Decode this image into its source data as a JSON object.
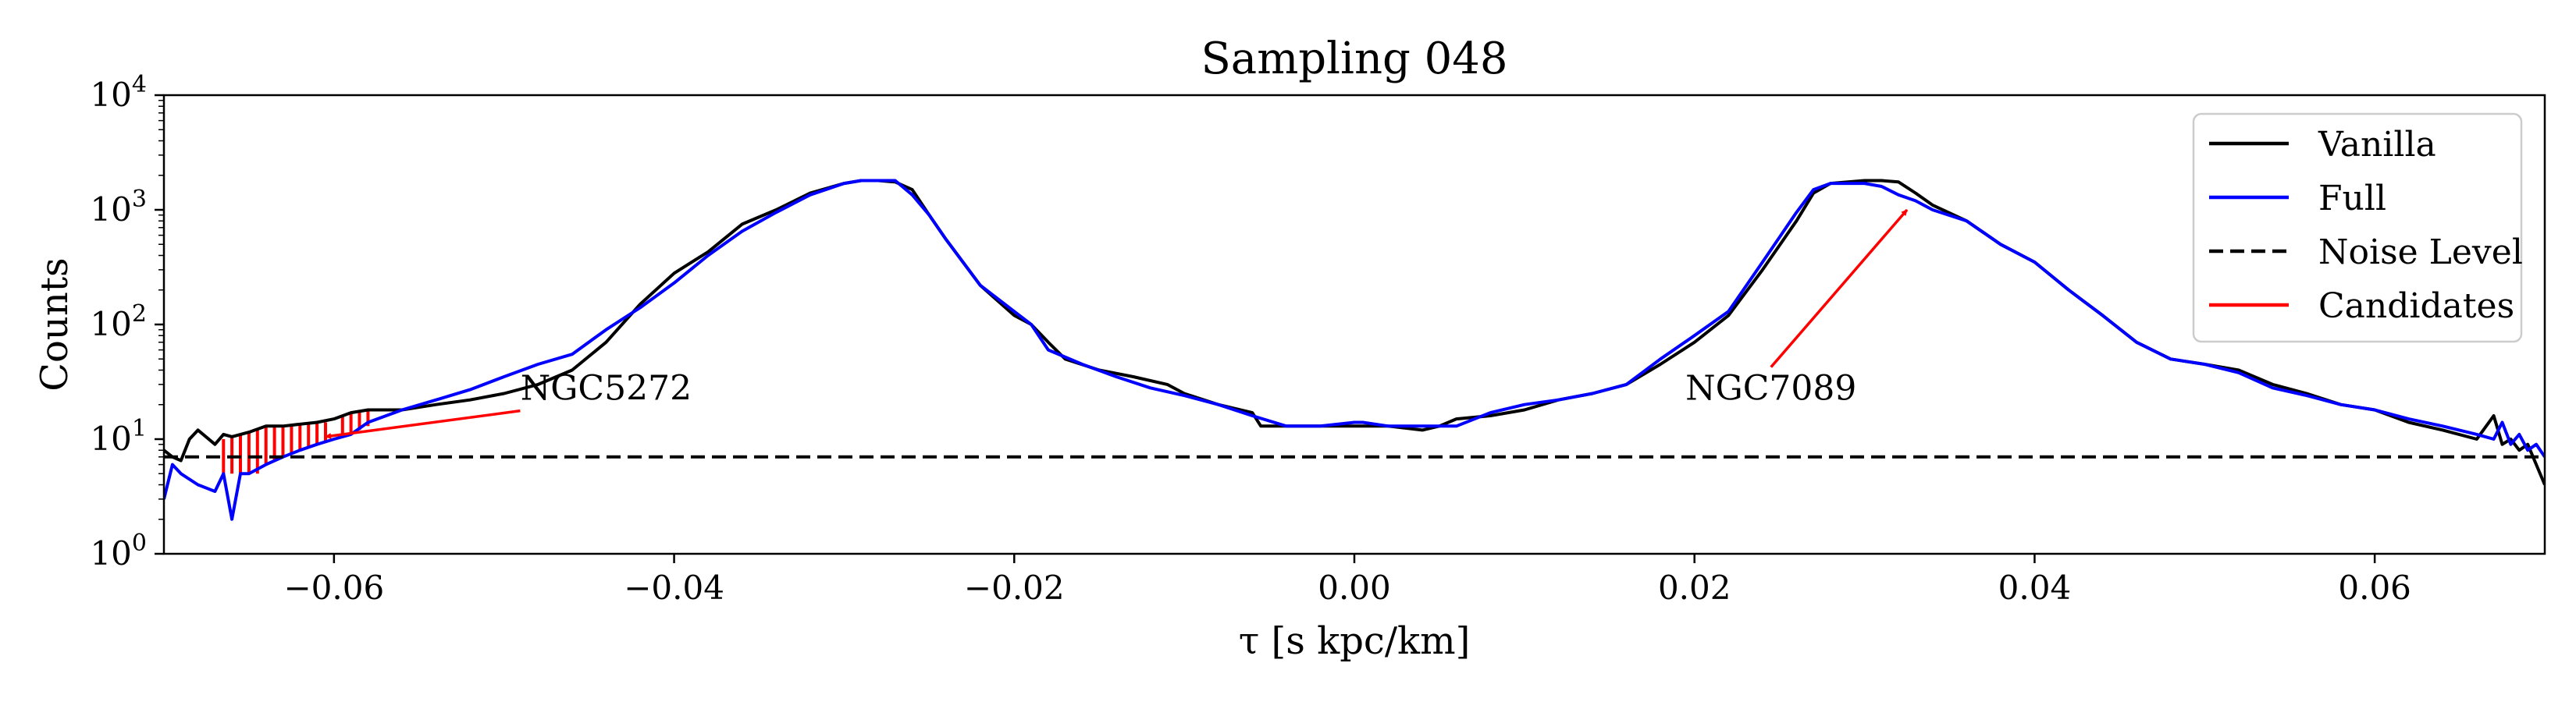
{
  "chart_data": {
    "type": "line",
    "title": "Sampling 048",
    "xlabel": "τ [s kpc/km]",
    "ylabel": "Counts",
    "xlim": [
      -0.07,
      0.07
    ],
    "ylim": [
      1,
      10000
    ],
    "yscale": "log",
    "grid": false,
    "legend_position": "top-right",
    "x_ticks": [
      -0.06,
      -0.04,
      -0.02,
      0.0,
      0.02,
      0.04,
      0.06
    ],
    "x_tick_labels": [
      "−0.06",
      "−0.04",
      "−0.02",
      "0.00",
      "0.02",
      "0.04",
      "0.06"
    ],
    "y_ticks": [
      1,
      10,
      100,
      1000,
      10000
    ],
    "y_tick_labels": [
      {
        "base": "10",
        "exp": "0"
      },
      {
        "base": "10",
        "exp": "1"
      },
      {
        "base": "10",
        "exp": "2"
      },
      {
        "base": "10",
        "exp": "3"
      },
      {
        "base": "10",
        "exp": "4"
      }
    ],
    "series": [
      {
        "name": "Vanilla",
        "color": "#000000",
        "style": "solid",
        "points": [
          [
            -0.07,
            8
          ],
          [
            -0.0695,
            7
          ],
          [
            -0.069,
            6.5
          ],
          [
            -0.0685,
            10
          ],
          [
            -0.068,
            12
          ],
          [
            -0.067,
            9
          ],
          [
            -0.0665,
            11
          ],
          [
            -0.066,
            10.5
          ],
          [
            -0.065,
            11.5
          ],
          [
            -0.064,
            13
          ],
          [
            -0.063,
            13
          ],
          [
            -0.062,
            13.5
          ],
          [
            -0.061,
            14
          ],
          [
            -0.06,
            15
          ],
          [
            -0.059,
            17
          ],
          [
            -0.058,
            18
          ],
          [
            -0.056,
            18
          ],
          [
            -0.054,
            20
          ],
          [
            -0.052,
            22
          ],
          [
            -0.05,
            25
          ],
          [
            -0.048,
            30
          ],
          [
            -0.046,
            40
          ],
          [
            -0.044,
            70
          ],
          [
            -0.042,
            150
          ],
          [
            -0.04,
            280
          ],
          [
            -0.038,
            430
          ],
          [
            -0.036,
            750
          ],
          [
            -0.034,
            1000
          ],
          [
            -0.032,
            1400
          ],
          [
            -0.03,
            1700
          ],
          [
            -0.029,
            1800
          ],
          [
            -0.028,
            1800
          ],
          [
            -0.027,
            1750
          ],
          [
            -0.026,
            1500
          ],
          [
            -0.025,
            900
          ],
          [
            -0.024,
            550
          ],
          [
            -0.022,
            220
          ],
          [
            -0.02,
            120
          ],
          [
            -0.019,
            100
          ],
          [
            -0.018,
            70
          ],
          [
            -0.017,
            50
          ],
          [
            -0.015,
            40
          ],
          [
            -0.013,
            35
          ],
          [
            -0.011,
            30
          ],
          [
            -0.01,
            25
          ],
          [
            -0.008,
            20
          ],
          [
            -0.006,
            17
          ],
          [
            -0.0055,
            13
          ],
          [
            -0.004,
            13
          ],
          [
            -0.002,
            13
          ],
          [
            0.0,
            13
          ],
          [
            0.002,
            13
          ],
          [
            0.004,
            12
          ],
          [
            0.005,
            13
          ],
          [
            0.006,
            15
          ],
          [
            0.008,
            16
          ],
          [
            0.01,
            18
          ],
          [
            0.012,
            22
          ],
          [
            0.014,
            25
          ],
          [
            0.016,
            30
          ],
          [
            0.018,
            45
          ],
          [
            0.02,
            70
          ],
          [
            0.022,
            120
          ],
          [
            0.024,
            300
          ],
          [
            0.026,
            800
          ],
          [
            0.027,
            1400
          ],
          [
            0.028,
            1700
          ],
          [
            0.03,
            1800
          ],
          [
            0.031,
            1800
          ],
          [
            0.032,
            1750
          ],
          [
            0.033,
            1400
          ],
          [
            0.034,
            1100
          ],
          [
            0.036,
            800
          ],
          [
            0.038,
            500
          ],
          [
            0.04,
            350
          ],
          [
            0.042,
            200
          ],
          [
            0.044,
            120
          ],
          [
            0.046,
            70
          ],
          [
            0.048,
            50
          ],
          [
            0.05,
            45
          ],
          [
            0.052,
            40
          ],
          [
            0.054,
            30
          ],
          [
            0.056,
            25
          ],
          [
            0.058,
            20
          ],
          [
            0.06,
            18
          ],
          [
            0.062,
            14
          ],
          [
            0.064,
            12
          ],
          [
            0.066,
            10
          ],
          [
            0.067,
            16
          ],
          [
            0.0675,
            9
          ],
          [
            0.068,
            10
          ],
          [
            0.0685,
            8
          ],
          [
            0.069,
            9
          ],
          [
            0.0695,
            6
          ],
          [
            0.07,
            4
          ]
        ]
      },
      {
        "name": "Full",
        "color": "#0000ff",
        "style": "solid",
        "points": [
          [
            -0.07,
            3
          ],
          [
            -0.0695,
            6
          ],
          [
            -0.069,
            5
          ],
          [
            -0.068,
            4
          ],
          [
            -0.067,
            3.5
          ],
          [
            -0.0665,
            5
          ],
          [
            -0.066,
            2
          ],
          [
            -0.0655,
            5
          ],
          [
            -0.065,
            5
          ],
          [
            -0.064,
            6
          ],
          [
            -0.063,
            7
          ],
          [
            -0.062,
            8
          ],
          [
            -0.061,
            9
          ],
          [
            -0.06,
            10
          ],
          [
            -0.059,
            11
          ],
          [
            -0.058,
            14
          ],
          [
            -0.056,
            18
          ],
          [
            -0.054,
            22
          ],
          [
            -0.052,
            27
          ],
          [
            -0.05,
            35
          ],
          [
            -0.048,
            45
          ],
          [
            -0.046,
            55
          ],
          [
            -0.044,
            90
          ],
          [
            -0.042,
            140
          ],
          [
            -0.04,
            230
          ],
          [
            -0.038,
            400
          ],
          [
            -0.036,
            650
          ],
          [
            -0.034,
            950
          ],
          [
            -0.032,
            1350
          ],
          [
            -0.03,
            1700
          ],
          [
            -0.029,
            1800
          ],
          [
            -0.028,
            1800
          ],
          [
            -0.027,
            1800
          ],
          [
            -0.026,
            1350
          ],
          [
            -0.025,
            900
          ],
          [
            -0.024,
            550
          ],
          [
            -0.022,
            220
          ],
          [
            -0.02,
            130
          ],
          [
            -0.019,
            100
          ],
          [
            -0.018,
            60
          ],
          [
            -0.016,
            45
          ],
          [
            -0.014,
            35
          ],
          [
            -0.012,
            28
          ],
          [
            -0.01,
            24
          ],
          [
            -0.008,
            20
          ],
          [
            -0.006,
            16
          ],
          [
            -0.004,
            13
          ],
          [
            -0.002,
            13
          ],
          [
            0.0,
            14
          ],
          [
            0.0005,
            14
          ],
          [
            0.002,
            13
          ],
          [
            0.004,
            13
          ],
          [
            0.006,
            13
          ],
          [
            0.008,
            17
          ],
          [
            0.01,
            20
          ],
          [
            0.012,
            22
          ],
          [
            0.014,
            25
          ],
          [
            0.016,
            30
          ],
          [
            0.018,
            50
          ],
          [
            0.02,
            80
          ],
          [
            0.022,
            130
          ],
          [
            0.024,
            350
          ],
          [
            0.026,
            950
          ],
          [
            0.027,
            1500
          ],
          [
            0.028,
            1700
          ],
          [
            0.03,
            1700
          ],
          [
            0.031,
            1600
          ],
          [
            0.032,
            1350
          ],
          [
            0.033,
            1200
          ],
          [
            0.034,
            1000
          ],
          [
            0.036,
            800
          ],
          [
            0.038,
            500
          ],
          [
            0.04,
            350
          ],
          [
            0.042,
            200
          ],
          [
            0.044,
            120
          ],
          [
            0.046,
            70
          ],
          [
            0.048,
            50
          ],
          [
            0.05,
            45
          ],
          [
            0.052,
            38
          ],
          [
            0.054,
            28
          ],
          [
            0.056,
            24
          ],
          [
            0.058,
            20
          ],
          [
            0.06,
            18
          ],
          [
            0.062,
            15
          ],
          [
            0.064,
            13
          ],
          [
            0.066,
            11
          ],
          [
            0.067,
            10
          ],
          [
            0.0675,
            14
          ],
          [
            0.068,
            9
          ],
          [
            0.0685,
            11
          ],
          [
            0.069,
            8
          ],
          [
            0.0695,
            9
          ],
          [
            0.07,
            7
          ]
        ]
      },
      {
        "name": "Noise Level",
        "color": "#000000",
        "style": "dashed",
        "points": [
          [
            -0.07,
            7
          ],
          [
            0.07,
            7
          ]
        ]
      },
      {
        "name": "Candidates",
        "color": "#ff0000",
        "style": "solid",
        "points": []
      }
    ],
    "candidate_spans": [
      {
        "x": -0.0665,
        "y_low": 5,
        "y_high": 10
      },
      {
        "x": -0.066,
        "y_low": 5,
        "y_high": 10.5
      },
      {
        "x": -0.0655,
        "y_low": 5,
        "y_high": 11
      },
      {
        "x": -0.065,
        "y_low": 5,
        "y_high": 11.5
      },
      {
        "x": -0.0645,
        "y_low": 5,
        "y_high": 12
      },
      {
        "x": -0.064,
        "y_low": 6,
        "y_high": 13
      },
      {
        "x": -0.0635,
        "y_low": 6.5,
        "y_high": 13
      },
      {
        "x": -0.063,
        "y_low": 7,
        "y_high": 13
      },
      {
        "x": -0.0625,
        "y_low": 7.5,
        "y_high": 13
      },
      {
        "x": -0.062,
        "y_low": 8,
        "y_high": 13.5
      },
      {
        "x": -0.0615,
        "y_low": 8.5,
        "y_high": 14
      },
      {
        "x": -0.061,
        "y_low": 9,
        "y_high": 14
      },
      {
        "x": -0.0605,
        "y_low": 9.5,
        "y_high": 14
      },
      {
        "x": -0.0595,
        "y_low": 10.5,
        "y_high": 16
      },
      {
        "x": -0.059,
        "y_low": 11,
        "y_high": 17
      },
      {
        "x": -0.0585,
        "y_low": 12,
        "y_high": 17.5
      },
      {
        "x": -0.058,
        "y_low": 13,
        "y_high": 18
      }
    ],
    "annotations": [
      {
        "text": "NGC5272",
        "text_x": -0.044,
        "text_y": 22,
        "arrow_x": -0.0605,
        "arrow_y": 10.5,
        "color": "#ff0000"
      },
      {
        "text": "NGC7089",
        "text_x": 0.0245,
        "text_y": 22,
        "arrow_x": 0.0325,
        "arrow_y": 1000,
        "color": "#ff0000"
      }
    ]
  }
}
